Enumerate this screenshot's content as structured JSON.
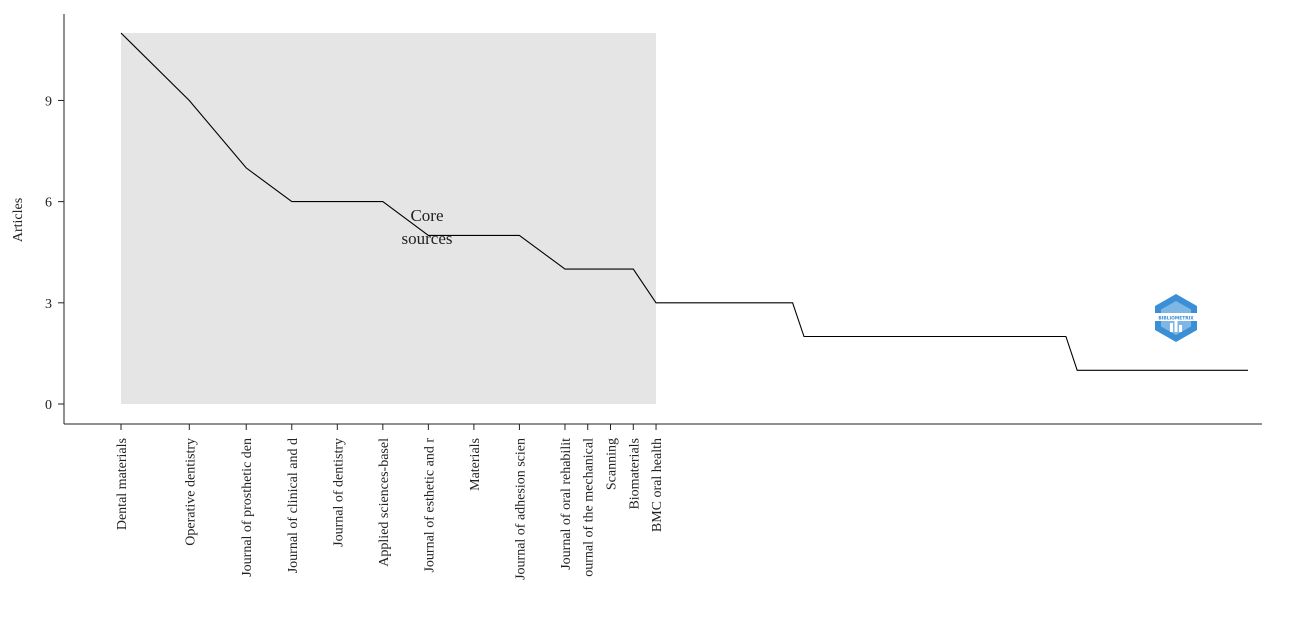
{
  "chart_data": {
    "type": "line",
    "ylabel": "Articles",
    "xlabel": "",
    "ylim": [
      -0.6,
      12.3
    ],
    "yticks": [
      0,
      3,
      6,
      9
    ],
    "x": [
      1,
      7,
      12,
      16,
      20,
      24,
      28,
      32,
      36,
      40,
      42,
      44,
      46,
      48,
      49,
      60,
      61,
      84,
      85,
      100
    ],
    "y": [
      11,
      9,
      7,
      6,
      6,
      6,
      5,
      5,
      5,
      4,
      4,
      4,
      4,
      3,
      3,
      3,
      2,
      2,
      1,
      1
    ],
    "labeled_points": [
      {
        "x": 1,
        "label": "Dental materials"
      },
      {
        "x": 7,
        "label": "Operative dentistry"
      },
      {
        "x": 12,
        "label": "Journal of prosthetic den"
      },
      {
        "x": 16,
        "label": "Journal of clinical and d"
      },
      {
        "x": 20,
        "label": "Journal of dentistry"
      },
      {
        "x": 24,
        "label": "Applied sciences-basel"
      },
      {
        "x": 28,
        "label": "Journal of esthetic and r"
      },
      {
        "x": 32,
        "label": "Materials"
      },
      {
        "x": 36,
        "label": "Journal of adhesion scien"
      },
      {
        "x": 40,
        "label": "Journal of oral rehabilit"
      },
      {
        "x": 42,
        "label": "ournal of the mechanical"
      },
      {
        "x": 44,
        "label": "Scanning"
      },
      {
        "x": 46,
        "label": "Biomaterials"
      },
      {
        "x": 48,
        "label": "BMC oral health"
      }
    ],
    "core_region": {
      "x_start": 1,
      "x_end": 48,
      "y_top": 11,
      "label_lines": [
        "Core",
        "sources"
      ]
    },
    "logo_text": "BIBLIOMETRIX",
    "colors": {
      "line": "#000000",
      "core_fill": "#e5e5e5",
      "logo": "#3a8fd6"
    }
  }
}
